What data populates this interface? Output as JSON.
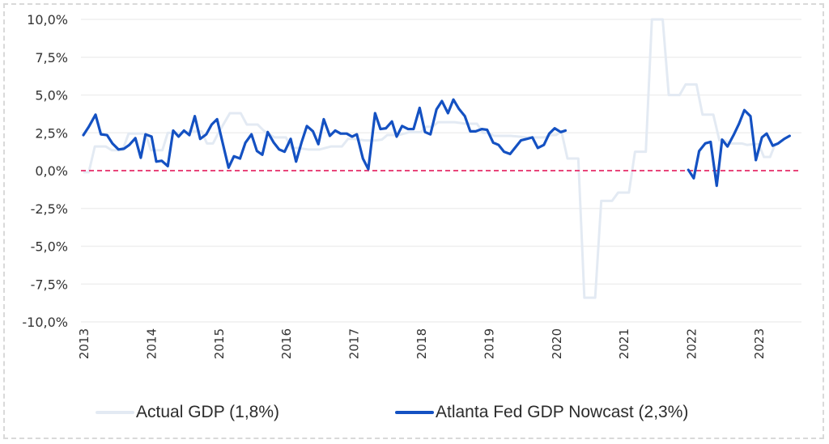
{
  "chart_data": {
    "type": "line",
    "title": "",
    "xlabel": "",
    "ylabel": "",
    "ylim": [
      -10,
      10
    ],
    "xlim": [
      2013,
      2024
    ],
    "grid": true,
    "legend_position": "bottom",
    "y_ticks": [
      {
        "value": 10,
        "label": "10,0%"
      },
      {
        "value": 7.5,
        "label": "7,5%"
      },
      {
        "value": 5,
        "label": "5,0%"
      },
      {
        "value": 2.5,
        "label": "2,5%"
      },
      {
        "value": 0,
        "label": "0,0%"
      },
      {
        "value": -2.5,
        "label": "-2,5%"
      },
      {
        "value": -5,
        "label": "-5,0%"
      },
      {
        "value": -7.5,
        "label": "-7,5%"
      },
      {
        "value": -10,
        "label": "-10,0%"
      }
    ],
    "x_ticks": [
      {
        "value": 2013,
        "label": "2013"
      },
      {
        "value": 2014,
        "label": "2014"
      },
      {
        "value": 2015,
        "label": "2015"
      },
      {
        "value": 2016,
        "label": "2016"
      },
      {
        "value": 2017,
        "label": "2017"
      },
      {
        "value": 2018,
        "label": "2018"
      },
      {
        "value": 2019,
        "label": "2019"
      },
      {
        "value": 2020,
        "label": "2020"
      },
      {
        "value": 2021,
        "label": "2021"
      },
      {
        "value": 2022,
        "label": "2022"
      },
      {
        "value": 2023,
        "label": "2023"
      }
    ],
    "reference_line": {
      "value": 0,
      "color": "#e8457a",
      "style": "dashed"
    },
    "series": [
      {
        "name": "Actual GDP",
        "legend_label": "Actual GDP (1,8%)",
        "color": "#e3eaf3",
        "points": [
          [
            2013.0,
            -0.1
          ],
          [
            2013.08,
            -0.1
          ],
          [
            2013.17,
            1.6
          ],
          [
            2013.33,
            1.6
          ],
          [
            2013.42,
            1.35
          ],
          [
            2013.58,
            1.35
          ],
          [
            2013.67,
            2.45
          ],
          [
            2013.92,
            2.45
          ],
          [
            2014.0,
            1.35
          ],
          [
            2014.17,
            1.35
          ],
          [
            2014.25,
            2.5
          ],
          [
            2014.42,
            2.5
          ],
          [
            2014.5,
            2.5
          ],
          [
            2014.58,
            2.6
          ],
          [
            2014.75,
            2.6
          ],
          [
            2014.83,
            1.8
          ],
          [
            2014.92,
            1.8
          ],
          [
            2015.0,
            2.5
          ],
          [
            2015.17,
            3.8
          ],
          [
            2015.33,
            3.8
          ],
          [
            2015.42,
            3.05
          ],
          [
            2015.58,
            3.05
          ],
          [
            2015.67,
            2.65
          ],
          [
            2015.83,
            2.2
          ],
          [
            2016.0,
            2.2
          ],
          [
            2016.08,
            1.5
          ],
          [
            2016.17,
            1.5
          ],
          [
            2016.33,
            1.4
          ],
          [
            2016.5,
            1.4
          ],
          [
            2016.67,
            1.6
          ],
          [
            2016.83,
            1.6
          ],
          [
            2016.92,
            2.1
          ],
          [
            2017.0,
            2.1
          ],
          [
            2017.17,
            2.0
          ],
          [
            2017.33,
            2.0
          ],
          [
            2017.42,
            2.05
          ],
          [
            2017.5,
            2.35
          ],
          [
            2017.67,
            2.35
          ],
          [
            2017.83,
            2.55
          ],
          [
            2018.0,
            2.55
          ],
          [
            2018.08,
            2.9
          ],
          [
            2018.17,
            2.9
          ],
          [
            2018.25,
            3.2
          ],
          [
            2018.5,
            3.2
          ],
          [
            2018.67,
            3.1
          ],
          [
            2018.83,
            3.1
          ],
          [
            2018.92,
            2.5
          ],
          [
            2019.0,
            2.5
          ],
          [
            2019.08,
            2.3
          ],
          [
            2019.33,
            2.3
          ],
          [
            2019.58,
            2.2
          ],
          [
            2019.83,
            2.2
          ],
          [
            2019.92,
            2.35
          ],
          [
            2020.0,
            2.35
          ],
          [
            2020.08,
            2.6
          ],
          [
            2020.17,
            0.8
          ],
          [
            2020.33,
            0.8
          ],
          [
            2020.42,
            -8.4
          ],
          [
            2020.58,
            -8.4
          ],
          [
            2020.67,
            -2.0
          ],
          [
            2020.83,
            -2.0
          ],
          [
            2020.92,
            -1.45
          ],
          [
            2021.08,
            -1.45
          ],
          [
            2021.17,
            1.25
          ],
          [
            2021.33,
            1.25
          ],
          [
            2021.42,
            10.5
          ],
          [
            2021.58,
            10.5
          ],
          [
            2021.67,
            5.0
          ],
          [
            2021.83,
            5.0
          ],
          [
            2021.92,
            5.7
          ],
          [
            2022.08,
            5.7
          ],
          [
            2022.17,
            3.7
          ],
          [
            2022.33,
            3.7
          ],
          [
            2022.42,
            2.0
          ],
          [
            2022.5,
            2.0
          ],
          [
            2022.58,
            1.8
          ],
          [
            2022.75,
            1.8
          ],
          [
            2022.83,
            1.7
          ],
          [
            2022.92,
            1.75
          ],
          [
            2023.0,
            1.75
          ],
          [
            2023.08,
            0.9
          ],
          [
            2023.17,
            0.9
          ],
          [
            2023.25,
            1.8
          ]
        ]
      },
      {
        "name": "Atlanta Fed GDP Nowcast",
        "legend_label": "Atlanta Fed GDP Nowcast (2,3%)",
        "color": "#1451c2",
        "segments": [
          [
            [
              2013.0,
              2.35
            ],
            [
              2013.08,
              2.9
            ],
            [
              2013.18,
              3.7
            ],
            [
              2013.26,
              2.4
            ],
            [
              2013.35,
              2.35
            ],
            [
              2013.43,
              1.8
            ],
            [
              2013.52,
              1.4
            ],
            [
              2013.6,
              1.45
            ],
            [
              2013.68,
              1.7
            ],
            [
              2013.77,
              2.15
            ],
            [
              2013.85,
              0.85
            ],
            [
              2013.92,
              2.4
            ],
            [
              2014.01,
              2.25
            ],
            [
              2014.08,
              0.6
            ],
            [
              2014.16,
              0.65
            ],
            [
              2014.25,
              0.3
            ],
            [
              2014.33,
              2.65
            ],
            [
              2014.41,
              2.25
            ],
            [
              2014.49,
              2.65
            ],
            [
              2014.57,
              2.35
            ],
            [
              2014.65,
              3.6
            ],
            [
              2014.73,
              2.1
            ],
            [
              2014.82,
              2.4
            ],
            [
              2014.9,
              3.05
            ],
            [
              2014.98,
              3.4
            ],
            [
              2015.07,
              1.7
            ],
            [
              2015.15,
              0.2
            ],
            [
              2015.23,
              0.95
            ],
            [
              2015.32,
              0.8
            ],
            [
              2015.4,
              1.85
            ],
            [
              2015.49,
              2.4
            ],
            [
              2015.57,
              1.3
            ],
            [
              2015.65,
              1.05
            ],
            [
              2015.73,
              2.55
            ],
            [
              2015.82,
              1.85
            ],
            [
              2015.9,
              1.4
            ],
            [
              2015.98,
              1.25
            ],
            [
              2016.07,
              2.1
            ],
            [
              2016.15,
              0.6
            ],
            [
              2016.23,
              1.85
            ],
            [
              2016.31,
              2.95
            ],
            [
              2016.4,
              2.6
            ],
            [
              2016.48,
              1.75
            ],
            [
              2016.56,
              3.4
            ],
            [
              2016.65,
              2.3
            ],
            [
              2016.73,
              2.65
            ],
            [
              2016.81,
              2.45
            ],
            [
              2016.9,
              2.45
            ],
            [
              2016.98,
              2.25
            ],
            [
              2017.05,
              2.4
            ],
            [
              2017.14,
              0.8
            ],
            [
              2017.22,
              0.1
            ],
            [
              2017.32,
              3.8
            ],
            [
              2017.4,
              2.75
            ],
            [
              2017.48,
              2.8
            ],
            [
              2017.57,
              3.25
            ],
            [
              2017.64,
              2.25
            ],
            [
              2017.72,
              2.95
            ],
            [
              2017.81,
              2.75
            ],
            [
              2017.89,
              2.75
            ],
            [
              2017.98,
              4.15
            ],
            [
              2018.06,
              2.55
            ],
            [
              2018.14,
              2.4
            ],
            [
              2018.23,
              4.05
            ],
            [
              2018.31,
              4.6
            ],
            [
              2018.4,
              3.8
            ],
            [
              2018.48,
              4.7
            ],
            [
              2018.56,
              4.1
            ],
            [
              2018.65,
              3.6
            ],
            [
              2018.73,
              2.6
            ],
            [
              2018.81,
              2.6
            ],
            [
              2018.9,
              2.75
            ],
            [
              2018.98,
              2.7
            ],
            [
              2019.07,
              1.85
            ],
            [
              2019.15,
              1.7
            ],
            [
              2019.23,
              1.25
            ],
            [
              2019.32,
              1.1
            ],
            [
              2019.4,
              1.55
            ],
            [
              2019.48,
              2.0
            ],
            [
              2019.57,
              2.1
            ],
            [
              2019.65,
              2.2
            ],
            [
              2019.73,
              1.5
            ],
            [
              2019.82,
              1.7
            ],
            [
              2019.9,
              2.45
            ],
            [
              2019.98,
              2.8
            ],
            [
              2020.07,
              2.55
            ],
            [
              2020.14,
              2.65
            ]
          ],
          [
            [
              2021.96,
              0.05
            ],
            [
              2022.04,
              -0.5
            ],
            [
              2022.12,
              1.3
            ],
            [
              2022.21,
              1.8
            ],
            [
              2022.29,
              1.9
            ],
            [
              2022.38,
              -1.0
            ],
            [
              2022.46,
              2.05
            ],
            [
              2022.54,
              1.6
            ],
            [
              2022.63,
              2.35
            ],
            [
              2022.71,
              3.1
            ],
            [
              2022.79,
              4.0
            ],
            [
              2022.88,
              3.6
            ],
            [
              2022.96,
              0.7
            ],
            [
              2023.05,
              2.2
            ],
            [
              2023.12,
              2.45
            ],
            [
              2023.21,
              1.65
            ],
            [
              2023.29,
              1.8
            ],
            [
              2023.38,
              2.1
            ],
            [
              2023.46,
              2.3
            ]
          ]
        ]
      }
    ]
  },
  "legend": {
    "items": [
      {
        "label": "Actual GDP (1,8%)",
        "color": "#e3eaf3"
      },
      {
        "label": "Atlanta Fed GDP Nowcast (2,3%)",
        "color": "#1451c2"
      }
    ]
  },
  "colors": {
    "gridline": "#efefef",
    "tick_text": "#333333",
    "frame": "#d9d9d9",
    "zero_line": "#e8457a"
  }
}
